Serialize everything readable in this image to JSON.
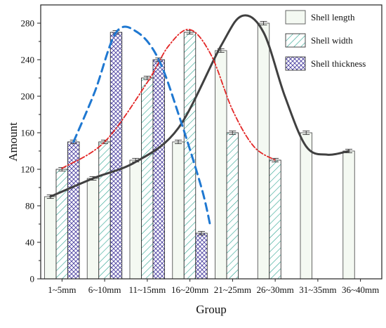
{
  "chart_data": {
    "type": "bar",
    "xlabel": "Group",
    "ylabel": "Amount",
    "ylim": [
      0,
      300
    ],
    "yticks": [
      0,
      40,
      80,
      120,
      160,
      200,
      240,
      280
    ],
    "grid": false,
    "legend_position": "top-right",
    "categories": [
      "1~5mm",
      "6~10mm",
      "11~15mm",
      "16~20mm",
      "21~25mm",
      "26~30mm",
      "31~35mm",
      "36~40mm"
    ],
    "series": [
      {
        "name": "Shell length",
        "fill": "#f4f9f2",
        "pattern": "none",
        "values": [
          90,
          110,
          130,
          150,
          250,
          280,
          160,
          140
        ],
        "errors": [
          2,
          2,
          2,
          2,
          2,
          2,
          2,
          2
        ]
      },
      {
        "name": "Shell width",
        "fill": "#2aa38f",
        "pattern": "diagonal-hatch",
        "values": [
          120,
          150,
          220,
          270,
          160,
          130,
          null,
          null
        ],
        "errors": [
          2,
          2,
          2,
          2,
          2,
          2,
          null,
          null
        ]
      },
      {
        "name": "Shell thickness",
        "fill": "#4a3fa0",
        "pattern": "cross-hatch",
        "values": [
          150,
          270,
          240,
          50,
          null,
          null,
          null,
          null
        ],
        "errors": [
          2,
          2,
          2,
          2,
          null,
          null,
          null,
          null
        ]
      }
    ],
    "fit_curves": [
      {
        "series": "Shell length",
        "color": "#404040",
        "style": "solid",
        "points": [
          [
            0,
            90
          ],
          [
            1,
            110
          ],
          [
            2,
            128
          ],
          [
            3,
            165
          ],
          [
            4,
            255
          ],
          [
            4.5,
            288
          ],
          [
            5,
            270
          ],
          [
            5.5,
            200
          ],
          [
            6,
            145
          ],
          [
            6.5,
            136
          ],
          [
            7,
            140
          ]
        ]
      },
      {
        "series": "Shell width",
        "color": "#e32626",
        "style": "dash-dot",
        "points": [
          [
            0,
            121
          ],
          [
            1,
            150
          ],
          [
            2,
            215
          ],
          [
            2.5,
            255
          ],
          [
            3,
            273
          ],
          [
            3.5,
            245
          ],
          [
            4,
            185
          ],
          [
            4.5,
            145
          ],
          [
            5,
            130
          ]
        ]
      },
      {
        "series": "Shell thickness",
        "color": "#1f78d1",
        "style": "dashed",
        "points": [
          [
            0,
            150
          ],
          [
            0.5,
            205
          ],
          [
            1,
            270
          ],
          [
            1.5,
            270
          ],
          [
            2,
            240
          ],
          [
            2.5,
            175
          ],
          [
            3,
            100
          ],
          [
            3.2,
            60
          ]
        ]
      }
    ]
  }
}
